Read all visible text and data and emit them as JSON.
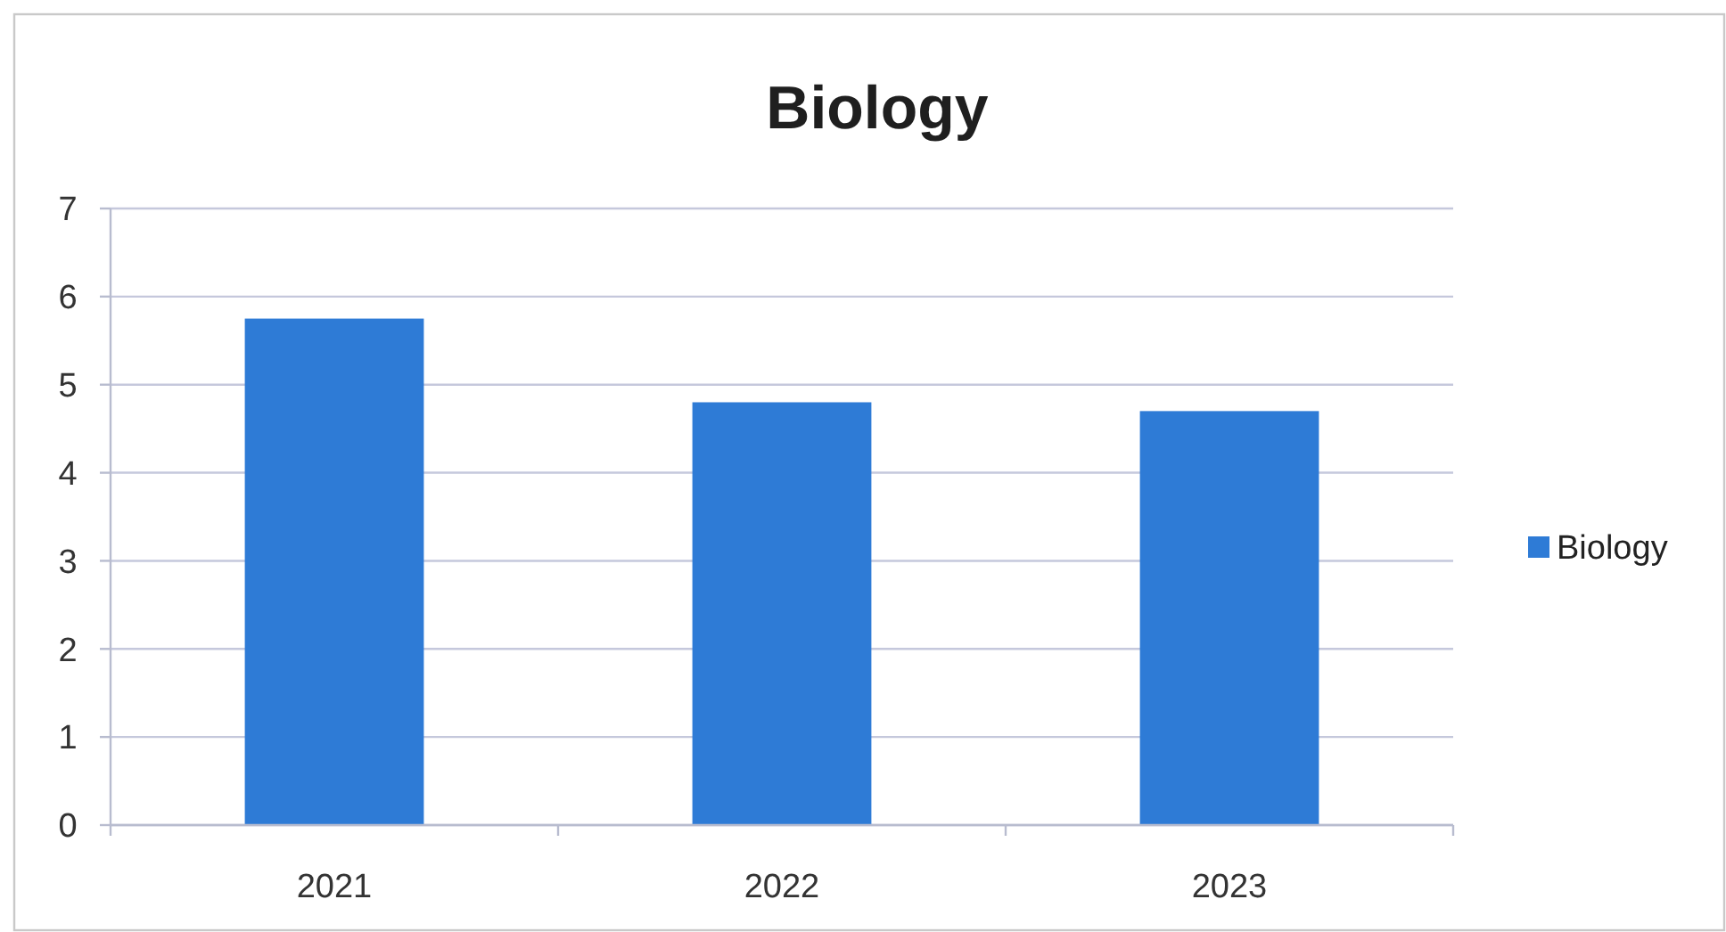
{
  "chart_data": {
    "type": "bar",
    "title": "Biology",
    "categories": [
      "2021",
      "2022",
      "2023"
    ],
    "series": [
      {
        "name": "Biology",
        "color": "#2e7bd6",
        "values": [
          5.75,
          4.8,
          4.7
        ]
      }
    ],
    "ylim": [
      0,
      7
    ],
    "yticks": [
      0,
      1,
      2,
      3,
      4,
      5,
      6,
      7
    ],
    "grid": "y",
    "legend": "right"
  }
}
